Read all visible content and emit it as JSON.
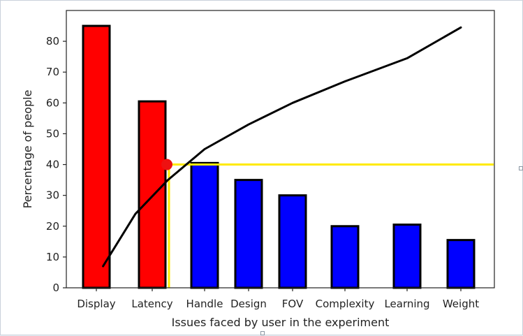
{
  "chart_data": {
    "type": "bar",
    "title": "",
    "xlabel": "Issues faced by user in the experiment",
    "ylabel": "Percentage of people",
    "ylim": [
      0,
      90
    ],
    "yticks": [
      0,
      10,
      20,
      30,
      40,
      50,
      60,
      70,
      80
    ],
    "grid": false,
    "categories": [
      "Display",
      "Latency",
      "Handle",
      "Design",
      "FOV",
      "Complexity",
      "Learning",
      "Weight"
    ],
    "values": [
      85,
      60.5,
      40.5,
      35,
      30,
      20,
      20.5,
      15.5
    ],
    "bar_colors": [
      "#ff0000",
      "#ff0000",
      "#0000ff",
      "#0000ff",
      "#0000ff",
      "#0000ff",
      "#0000ff",
      "#0000ff"
    ],
    "cumulative_line": {
      "color": "#000000",
      "x": [
        0.12,
        0.7,
        1.3,
        2.0,
        3.0,
        4.0,
        5.0,
        6.0,
        7.0
      ],
      "y": [
        7,
        24,
        35,
        45,
        53,
        60,
        67,
        74.5,
        84.5
      ]
    },
    "threshold": {
      "color": "#ffea00",
      "point_color": "#ee1111",
      "y": 40,
      "x": 1.28
    }
  }
}
